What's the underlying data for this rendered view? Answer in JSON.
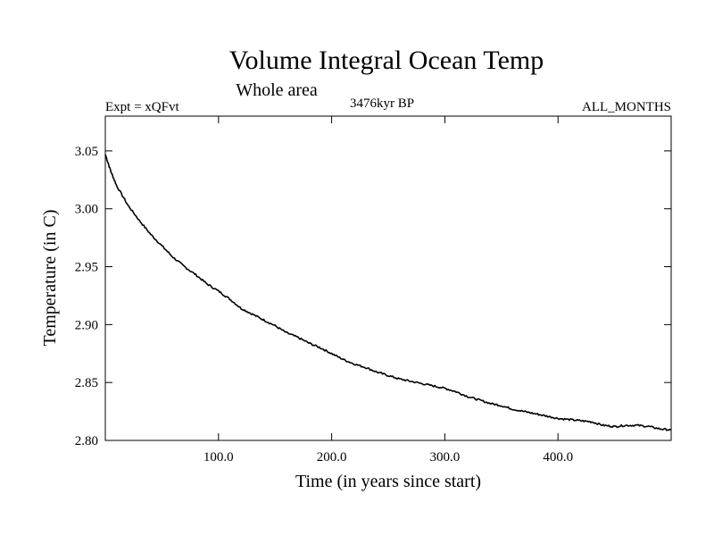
{
  "header": {
    "title": "Volume Integral Ocean Temp",
    "subtitle": "Whole area",
    "experiment": "Expt = xQFvt",
    "period": "3476kyr BP",
    "months": "ALL_MONTHS"
  },
  "chart_data": {
    "type": "line",
    "title": "Volume Integral Ocean Temp",
    "subtitle": "Whole area",
    "xlabel": "Time (in years since start)",
    "ylabel": "Temperature (in C)",
    "xlim": [
      0,
      500
    ],
    "ylim": [
      2.8,
      3.08
    ],
    "x_ticks": [
      100,
      200,
      300,
      400
    ],
    "x_tick_labels": [
      "100.0",
      "200.0",
      "300.0",
      "400.0"
    ],
    "y_ticks": [
      2.8,
      2.85,
      2.9,
      2.95,
      3.0,
      3.05
    ],
    "y_tick_labels": [
      "2.80",
      "2.85",
      "2.90",
      "2.95",
      "3.00",
      "3.05"
    ],
    "series": [
      {
        "name": "Temperature",
        "x": [
          0,
          5,
          10,
          20,
          30,
          40,
          50,
          60,
          70,
          80,
          90,
          100,
          110,
          120,
          130,
          140,
          150,
          160,
          170,
          180,
          190,
          200,
          210,
          220,
          230,
          240,
          250,
          260,
          270,
          280,
          290,
          300,
          310,
          320,
          330,
          340,
          350,
          360,
          370,
          380,
          390,
          400,
          410,
          420,
          430,
          440,
          450,
          460,
          470,
          480,
          490,
          500
        ],
        "values": [
          3.047,
          3.032,
          3.02,
          3.003,
          2.99,
          2.978,
          2.968,
          2.958,
          2.95,
          2.943,
          2.935,
          2.929,
          2.922,
          2.914,
          2.909,
          2.904,
          2.899,
          2.893,
          2.889,
          2.884,
          2.88,
          2.875,
          2.87,
          2.866,
          2.863,
          2.859,
          2.856,
          2.853,
          2.851,
          2.849,
          2.847,
          2.845,
          2.842,
          2.838,
          2.835,
          2.832,
          2.83,
          2.827,
          2.825,
          2.823,
          2.821,
          2.819,
          2.818,
          2.817,
          2.816,
          2.813,
          2.812,
          2.813,
          2.813,
          2.812,
          2.81,
          2.809
        ]
      }
    ]
  }
}
